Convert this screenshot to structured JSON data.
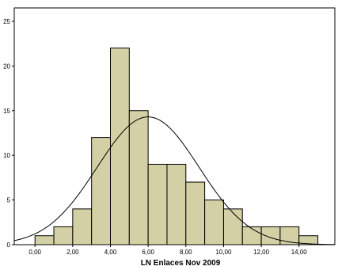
{
  "chart_data": {
    "type": "bar",
    "subtype": "histogram",
    "xlabel": "LN Enlaces Nov 2009",
    "ylabel": "",
    "x_ticks": [
      0,
      2,
      4,
      6,
      8,
      10,
      12,
      14
    ],
    "x_tick_labels": [
      "0,00",
      "2,00",
      "4,00",
      "6,00",
      "8,00",
      "10,00",
      "12,00",
      "14,00"
    ],
    "y_ticks": [
      0,
      5,
      10,
      15,
      20,
      25
    ],
    "y_tick_labels": [
      "0",
      "5",
      "10",
      "15",
      "20",
      "25"
    ],
    "xlim": [
      -1.1,
      15.9
    ],
    "ylim": [
      0,
      26.5
    ],
    "bin_width": 1.0,
    "bins": [
      {
        "start": 0.0,
        "end": 1.0,
        "count": 1
      },
      {
        "start": 1.0,
        "end": 2.0,
        "count": 2
      },
      {
        "start": 2.0,
        "end": 3.0,
        "count": 4
      },
      {
        "start": 3.0,
        "end": 4.0,
        "count": 12
      },
      {
        "start": 4.0,
        "end": 5.0,
        "count": 22
      },
      {
        "start": 5.0,
        "end": 6.0,
        "count": 15
      },
      {
        "start": 6.0,
        "end": 7.0,
        "count": 9
      },
      {
        "start": 7.0,
        "end": 8.0,
        "count": 9
      },
      {
        "start": 8.0,
        "end": 9.0,
        "count": 7
      },
      {
        "start": 9.0,
        "end": 10.0,
        "count": 5
      },
      {
        "start": 10.0,
        "end": 11.0,
        "count": 4
      },
      {
        "start": 11.0,
        "end": 12.0,
        "count": 2
      },
      {
        "start": 12.0,
        "end": 13.0,
        "count": 2
      },
      {
        "start": 13.0,
        "end": 14.0,
        "count": 2
      },
      {
        "start": 14.0,
        "end": 15.0,
        "count": 1
      }
    ],
    "normal_curve": {
      "mean": 6.0,
      "sd": 2.7,
      "peak": 14.3
    },
    "grid": false,
    "legend": "none",
    "colors": {
      "bar_fill": "#d4d0a5",
      "bar_stroke": "#000000",
      "curve": "#000000",
      "background": "#ffffff",
      "axis": "#000000"
    }
  }
}
